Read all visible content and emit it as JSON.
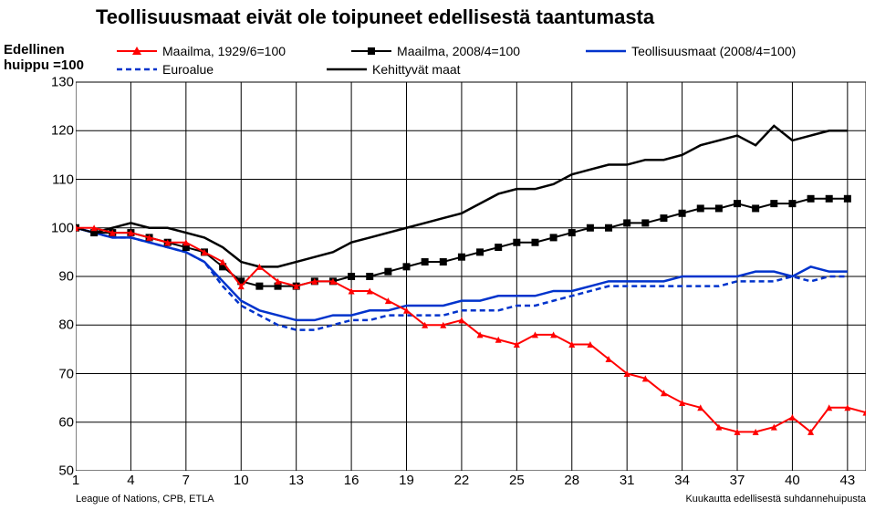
{
  "title": "Teollisuusmaat eivät ole toipuneet edellisestä taantumasta",
  "y_axis_label_line1": "Edellinen",
  "y_axis_label_line2": "huippu =100",
  "source_left": "League of Nations, CPB, ETLA",
  "source_right": "Kuukautta edellisestä suhdannehuipusta",
  "chart": {
    "type": "line",
    "background_color": "#ffffff",
    "grid_color": "#000000",
    "ylim": [
      50,
      130
    ],
    "xlim": [
      1,
      44
    ],
    "yticks": [
      50,
      60,
      70,
      80,
      90,
      100,
      110,
      120,
      130
    ],
    "xticks": [
      1,
      4,
      7,
      10,
      13,
      16,
      19,
      22,
      25,
      28,
      31,
      34,
      37,
      40,
      43
    ],
    "legend": [
      {
        "label": "Maailma, 1929/6=100",
        "color": "#ff0000",
        "marker": "triangle",
        "dash": "none",
        "width": 2
      },
      {
        "label": "Maailma, 2008/4=100",
        "color": "#000000",
        "marker": "square",
        "dash": "none",
        "width": 2
      },
      {
        "label": "Teollisuusmaat (2008/4=100)",
        "color": "#0033cc",
        "marker": "none",
        "dash": "none",
        "width": 2
      },
      {
        "label": "Euroalue",
        "color": "#0033cc",
        "marker": "none",
        "dash": "6,4",
        "width": 2
      },
      {
        "label": "Kehittyvät maat",
        "color": "#000000",
        "marker": "none",
        "dash": "none",
        "width": 2
      }
    ],
    "series": {
      "maailma_1929": {
        "color": "#ff0000",
        "marker": "triangle",
        "marker_size": 7,
        "width": 2,
        "dash": "none",
        "x": [
          1,
          2,
          3,
          4,
          5,
          6,
          7,
          8,
          9,
          10,
          11,
          12,
          13,
          14,
          15,
          16,
          17,
          18,
          19,
          20,
          21,
          22,
          23,
          24,
          25,
          26,
          27,
          28,
          29,
          30,
          31,
          32,
          33,
          34,
          35,
          36,
          37,
          38,
          39,
          40,
          41,
          42,
          43,
          44
        ],
        "y": [
          100,
          100,
          99,
          99,
          98,
          97,
          97,
          95,
          93,
          88,
          92,
          89,
          88,
          89,
          89,
          87,
          87,
          85,
          83,
          80,
          80,
          81,
          78,
          77,
          76,
          78,
          78,
          76,
          76,
          73,
          70,
          69,
          66,
          64,
          63,
          59,
          58,
          58,
          59,
          61,
          58,
          63,
          63,
          62
        ]
      },
      "maailma_2008": {
        "color": "#000000",
        "marker": "square",
        "marker_size": 8,
        "width": 2,
        "dash": "none",
        "x": [
          1,
          2,
          3,
          4,
          5,
          6,
          7,
          8,
          9,
          10,
          11,
          12,
          13,
          14,
          15,
          16,
          17,
          18,
          19,
          20,
          21,
          22,
          23,
          24,
          25,
          26,
          27,
          28,
          29,
          30,
          31,
          32,
          33,
          34,
          35,
          36,
          37,
          38,
          39,
          40,
          41,
          42,
          43
        ],
        "y": [
          100,
          99,
          99,
          99,
          98,
          97,
          96,
          95,
          92,
          89,
          88,
          88,
          88,
          89,
          89,
          90,
          90,
          91,
          92,
          93,
          93,
          94,
          95,
          96,
          97,
          97,
          98,
          99,
          100,
          100,
          101,
          101,
          102,
          103,
          104,
          104,
          105,
          104,
          105,
          105,
          106,
          106,
          106
        ]
      },
      "teollisuusmaat": {
        "color": "#0033cc",
        "marker": "none",
        "width": 2.5,
        "dash": "none",
        "x": [
          1,
          2,
          3,
          4,
          5,
          6,
          7,
          8,
          9,
          10,
          11,
          12,
          13,
          14,
          15,
          16,
          17,
          18,
          19,
          20,
          21,
          22,
          23,
          24,
          25,
          26,
          27,
          28,
          29,
          30,
          31,
          32,
          33,
          34,
          35,
          36,
          37,
          38,
          39,
          40,
          41,
          42,
          43
        ],
        "y": [
          100,
          99,
          98,
          98,
          97,
          96,
          95,
          93,
          89,
          85,
          83,
          82,
          81,
          81,
          82,
          82,
          83,
          83,
          84,
          84,
          84,
          85,
          85,
          86,
          86,
          86,
          87,
          87,
          88,
          89,
          89,
          89,
          89,
          90,
          90,
          90,
          90,
          91,
          91,
          90,
          92,
          91,
          91
        ]
      },
      "euroalue": {
        "color": "#0033cc",
        "marker": "none",
        "width": 2.5,
        "dash": "6,4",
        "x": [
          1,
          2,
          3,
          4,
          5,
          6,
          7,
          8,
          9,
          10,
          11,
          12,
          13,
          14,
          15,
          16,
          17,
          18,
          19,
          20,
          21,
          22,
          23,
          24,
          25,
          26,
          27,
          28,
          29,
          30,
          31,
          32,
          33,
          34,
          35,
          36,
          37,
          38,
          39,
          40,
          41,
          42,
          43
        ],
        "y": [
          100,
          99,
          98,
          98,
          97,
          96,
          95,
          93,
          88,
          84,
          82,
          80,
          79,
          79,
          80,
          81,
          81,
          82,
          82,
          82,
          82,
          83,
          83,
          83,
          84,
          84,
          85,
          86,
          87,
          88,
          88,
          88,
          88,
          88,
          88,
          88,
          89,
          89,
          89,
          90,
          89,
          90,
          90
        ]
      },
      "kehittyvat": {
        "color": "#000000",
        "marker": "none",
        "width": 2.5,
        "dash": "none",
        "x": [
          1,
          2,
          3,
          4,
          5,
          6,
          7,
          8,
          9,
          10,
          11,
          12,
          13,
          14,
          15,
          16,
          17,
          18,
          19,
          20,
          21,
          22,
          23,
          24,
          25,
          26,
          27,
          28,
          29,
          30,
          31,
          32,
          33,
          34,
          35,
          36,
          37,
          38,
          39,
          40,
          41,
          42,
          43
        ],
        "y": [
          100,
          99,
          100,
          101,
          100,
          100,
          99,
          98,
          96,
          93,
          92,
          92,
          93,
          94,
          95,
          97,
          98,
          99,
          100,
          101,
          102,
          103,
          105,
          107,
          108,
          108,
          109,
          111,
          112,
          113,
          113,
          114,
          114,
          115,
          117,
          118,
          119,
          117,
          121,
          118,
          119,
          120,
          120
        ]
      }
    }
  }
}
